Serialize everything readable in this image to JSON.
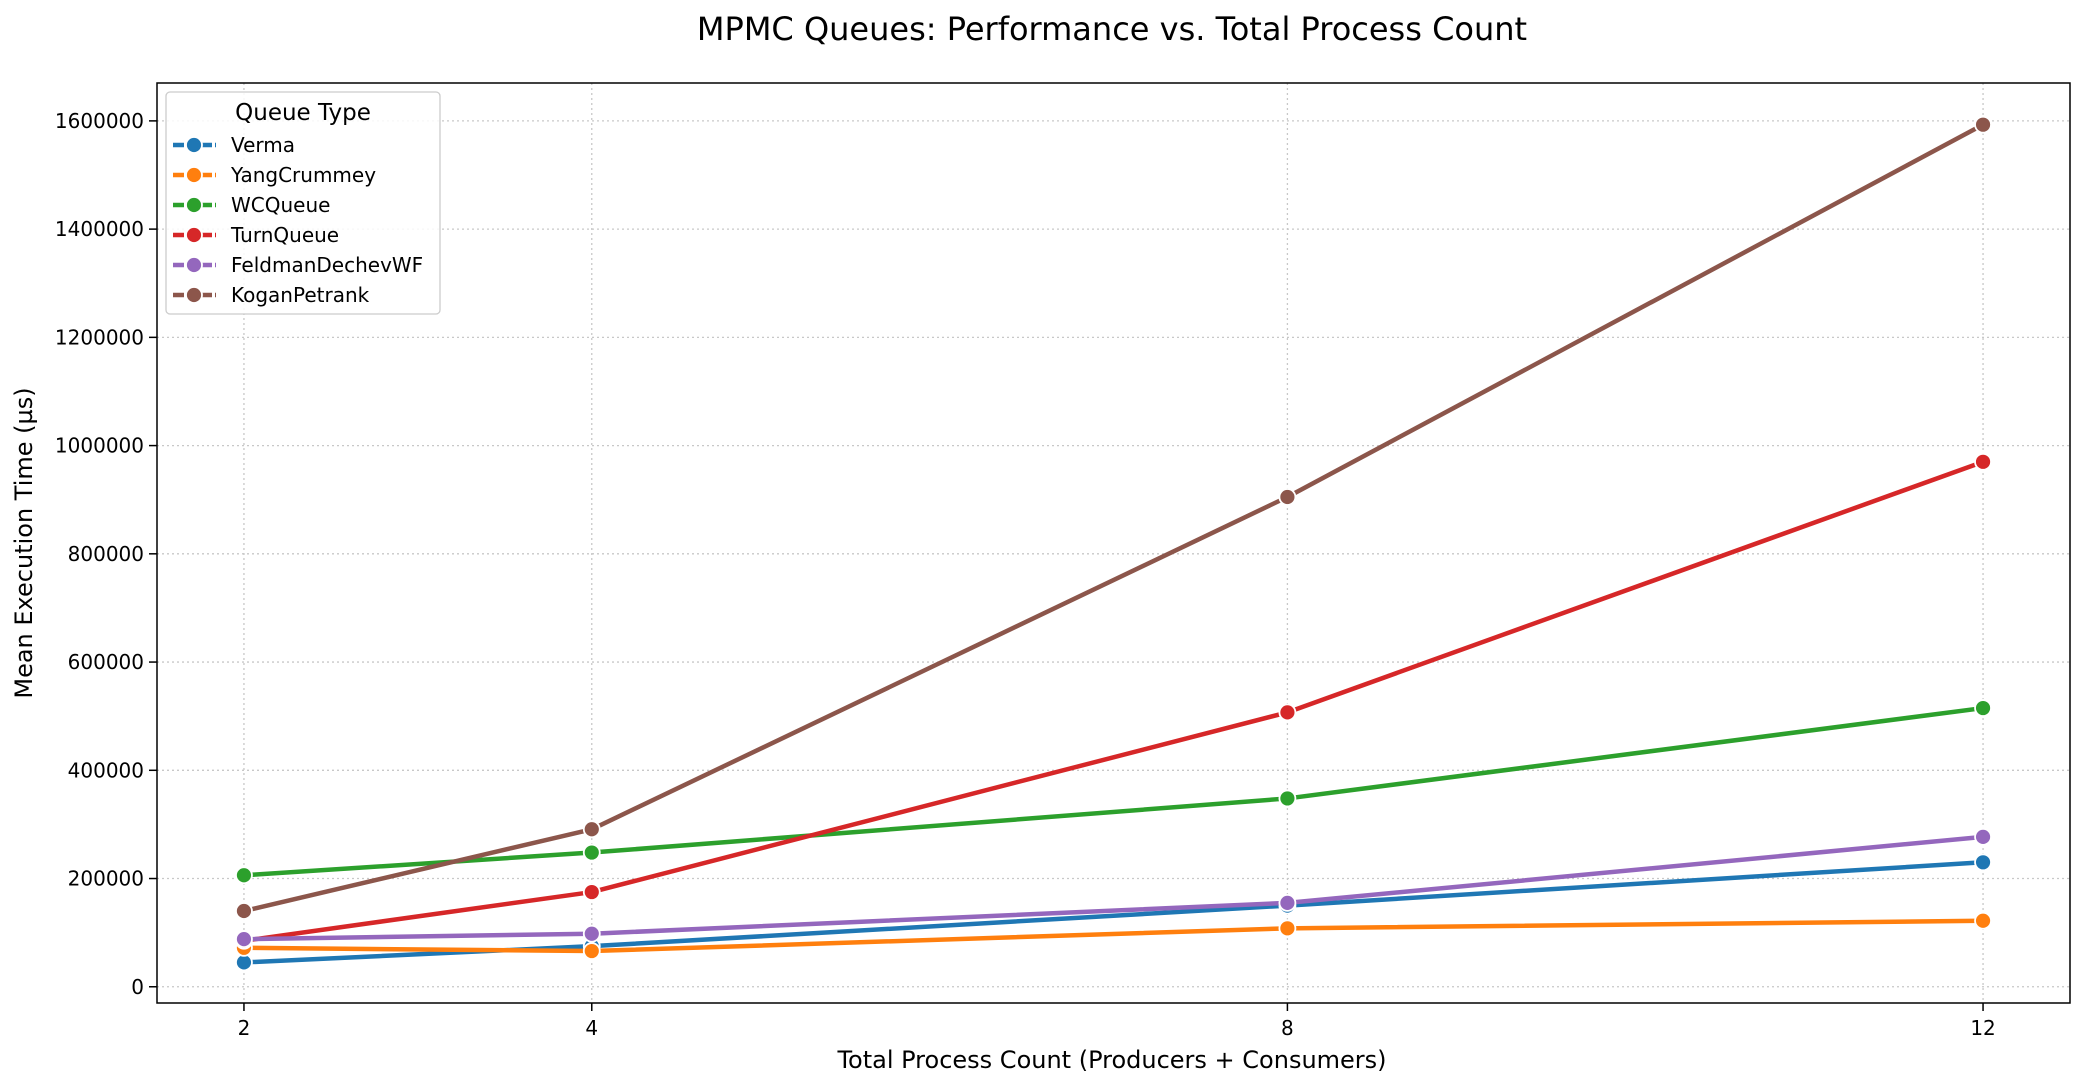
{
  "chart_data": {
    "type": "line",
    "title": "MPMC Queues: Performance vs. Total Process Count",
    "xlabel": "Total Process Count (Producers + Consumers)",
    "ylabel": "Mean Execution Time (µs)",
    "x": [
      2,
      4,
      8,
      12
    ],
    "xlim": [
      1.5,
      12.5
    ],
    "ylim": [
      -30000,
      1670000
    ],
    "yticks": [
      0,
      200000,
      400000,
      600000,
      800000,
      1000000,
      1200000,
      1400000,
      1600000
    ],
    "grid": true,
    "legend": {
      "title": "Queue Type",
      "placement": "top-left"
    },
    "series": [
      {
        "name": "Verma",
        "color": "#1f77b4",
        "values": [
          45000,
          75000,
          150000,
          230000
        ]
      },
      {
        "name": "YangCrummey",
        "color": "#ff7f0e",
        "values": [
          72000,
          66000,
          108000,
          122000
        ]
      },
      {
        "name": "WCQueue",
        "color": "#2ca02c",
        "values": [
          206000,
          248000,
          348000,
          515000
        ]
      },
      {
        "name": "TurnQueue",
        "color": "#d62728",
        "values": [
          85000,
          175000,
          507000,
          970000
        ]
      },
      {
        "name": "FeldmanDechevWF",
        "color": "#9467bd",
        "values": [
          88000,
          98000,
          155000,
          277000
        ]
      },
      {
        "name": "KoganPetrank",
        "color": "#8c564b",
        "values": [
          140000,
          291000,
          905000,
          1593000
        ]
      }
    ]
  }
}
